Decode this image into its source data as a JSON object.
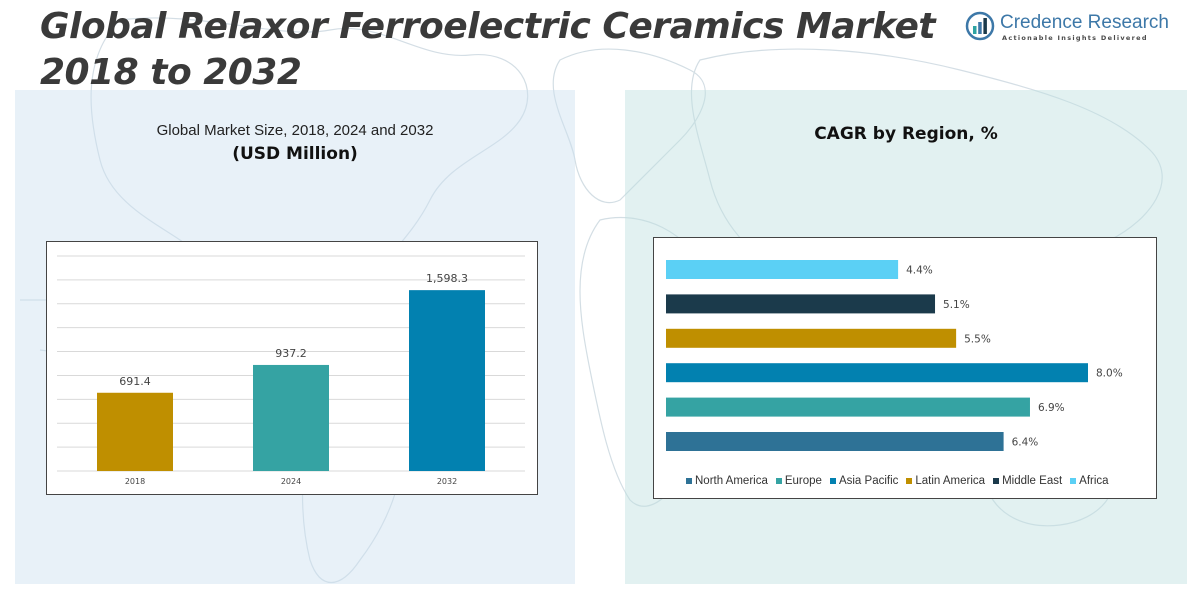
{
  "page": {
    "title": "Global Relaxor Ferroelectric Ceramics Market 2018 to 2032",
    "brand": {
      "name": "Credence Research",
      "tagline": "Actionable Insights Delivered"
    }
  },
  "left_panel": {
    "subtitle": "Global Market Size, 2018, 2024 and 2032",
    "unit": "(USD Million)"
  },
  "right_panel": {
    "title": "CAGR by Region, %"
  },
  "chart_data": [
    {
      "type": "bar",
      "title": "Global Market Size, 2018, 2024 and 2032",
      "subtitle": "(USD Million)",
      "categories": [
        "2018",
        "2024",
        "2032"
      ],
      "values": [
        691.4,
        937.2,
        1598.3
      ],
      "value_labels": [
        "691.4",
        "937.2",
        "1,598.3"
      ],
      "colors": [
        "#bf8f00",
        "#35a3a3",
        "#0281b0"
      ],
      "ylim": [
        0,
        1900
      ],
      "grid": true,
      "yaxis_visible": false
    },
    {
      "type": "bar",
      "orientation": "horizontal",
      "title": "CAGR by Region, %",
      "series": [
        {
          "name": "Africa",
          "value": 4.4,
          "label": "4.4%",
          "color": "#5bd0f5"
        },
        {
          "name": "Middle East",
          "value": 5.1,
          "label": "5.1%",
          "color": "#1b3a4b"
        },
        {
          "name": "Latin America",
          "value": 5.5,
          "label": "5.5%",
          "color": "#bf8f00"
        },
        {
          "name": "Asia Pacific",
          "value": 8.0,
          "label": "8.0%",
          "color": "#0281b0"
        },
        {
          "name": "Europe",
          "value": 6.9,
          "label": "6.9%",
          "color": "#35a3a3"
        },
        {
          "name": "North America",
          "value": 6.4,
          "label": "6.4%",
          "color": "#2e7296"
        }
      ],
      "legend": {
        "placement": "bottom",
        "entries": [
          {
            "name": "North America",
            "color": "#2e7296"
          },
          {
            "name": "Europe",
            "color": "#35a3a3"
          },
          {
            "name": "Asia Pacific",
            "color": "#0281b0"
          },
          {
            "name": "Latin America",
            "color": "#bf8f00"
          },
          {
            "name": "Middle East",
            "color": "#1b3a4b"
          },
          {
            "name": "Africa",
            "color": "#5bd0f5"
          }
        ]
      },
      "xlim": [
        0,
        8.0
      ],
      "grid": false
    }
  ]
}
